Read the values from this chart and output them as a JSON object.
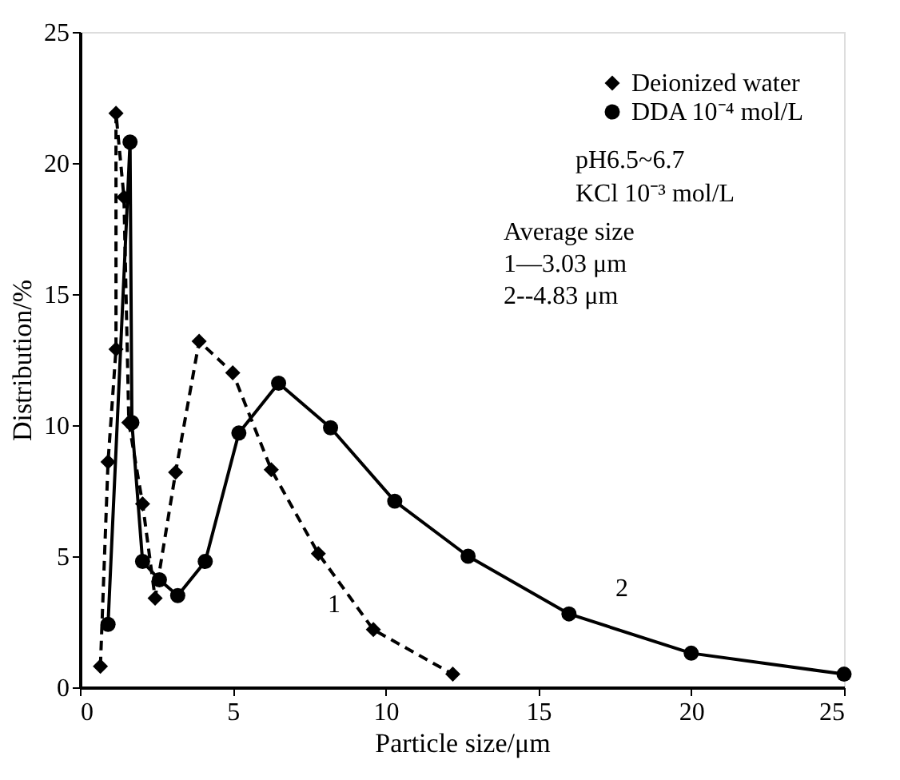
{
  "chart_data": {
    "type": "line",
    "xlabel": "Particle size/μm",
    "ylabel": "Distribution/%",
    "xlim": [
      0,
      25
    ],
    "xticks": [
      0,
      5,
      10,
      15,
      20,
      25
    ],
    "ylim": [
      0,
      25
    ],
    "yticks": [
      0,
      5,
      10,
      15,
      20,
      25
    ],
    "grid": false,
    "legend": "top right",
    "series": [
      {
        "name": "Deionized water",
        "color": "#000000",
        "marker": "diamond",
        "line_style": "dashed",
        "x": [
          0.67,
          0.92,
          1.18,
          1.18,
          1.44,
          1.6,
          2.05,
          2.46,
          3.13,
          3.9,
          5.0,
          6.26,
          7.8,
          9.6,
          12.2
        ],
        "values": [
          0.8,
          8.6,
          12.9,
          21.9,
          18.7,
          10.1,
          7.0,
          3.4,
          8.2,
          13.2,
          12.0,
          8.3,
          5.1,
          2.2,
          0.5
        ]
      },
      {
        "name": "DDA 10⁻⁴ mol/L",
        "color": "#000000",
        "marker": "circle",
        "line_style": "solid",
        "x": [
          0.92,
          1.64,
          1.7,
          2.05,
          2.6,
          3.2,
          4.1,
          5.2,
          6.5,
          8.2,
          10.3,
          12.7,
          16.0,
          20.0,
          25.0
        ],
        "values": [
          2.4,
          20.8,
          10.1,
          4.8,
          4.1,
          3.5,
          4.8,
          9.7,
          11.6,
          9.9,
          7.1,
          5.0,
          2.8,
          1.3,
          0.5
        ]
      }
    ],
    "annotations": [
      "pH6.5~6.7",
      "KCl 10⁻³ mol/L",
      "Average size",
      "1—3.03 μm",
      "2--4.83 μm",
      "1",
      "2"
    ]
  }
}
